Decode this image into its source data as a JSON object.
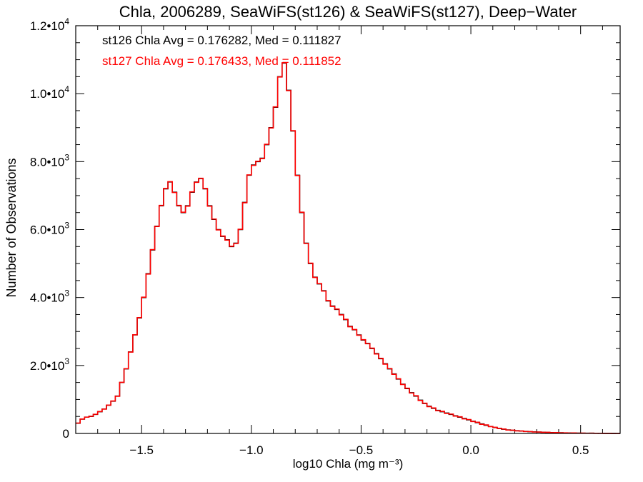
{
  "chart_data": {
    "type": "line",
    "style": "step-histogram",
    "title": "Chla, 2006289, SeaWiFS(st126) & SeaWiFS(st127), Deep−Water",
    "xlabel": "log10 Chla (mg m⁻³)",
    "ylabel": "Number of Observations",
    "xlim": [
      -1.8,
      0.68
    ],
    "ylim": [
      0,
      12000
    ],
    "x_ticks": [
      {
        "value": -1.5,
        "label": "−1.5"
      },
      {
        "value": -1.0,
        "label": "−1.0"
      },
      {
        "value": -0.5,
        "label": "−0.5"
      },
      {
        "value": 0.0,
        "label": "0.0"
      },
      {
        "value": 0.5,
        "label": "0.5"
      }
    ],
    "y_ticks": [
      {
        "value": 0,
        "mant": "0",
        "exp": ""
      },
      {
        "value": 2000,
        "mant": "2.0•10",
        "exp": "3"
      },
      {
        "value": 4000,
        "mant": "4.0•10",
        "exp": "3"
      },
      {
        "value": 6000,
        "mant": "6.0•10",
        "exp": "3"
      },
      {
        "value": 8000,
        "mant": "8.0•10",
        "exp": "3"
      },
      {
        "value": 10000,
        "mant": "1.0•10",
        "exp": "4"
      },
      {
        "value": 12000,
        "mant": "1.2•10",
        "exp": "4"
      }
    ],
    "grid": false,
    "legend_placement": "top-left",
    "series": [
      {
        "id": "st126",
        "annotation": "st126 Chla Avg = 0.176282, Med = 0.111827",
        "color": "#000000",
        "x": [
          -1.8,
          -1.78,
          -1.76,
          -1.74,
          -1.72,
          -1.7,
          -1.68,
          -1.66,
          -1.64,
          -1.62,
          -1.6,
          -1.58,
          -1.56,
          -1.54,
          -1.52,
          -1.5,
          -1.48,
          -1.46,
          -1.44,
          -1.42,
          -1.4,
          -1.38,
          -1.36,
          -1.34,
          -1.32,
          -1.3,
          -1.28,
          -1.26,
          -1.24,
          -1.22,
          -1.2,
          -1.18,
          -1.16,
          -1.14,
          -1.12,
          -1.1,
          -1.08,
          -1.06,
          -1.04,
          -1.02,
          -1.0,
          -0.98,
          -0.96,
          -0.94,
          -0.92,
          -0.9,
          -0.88,
          -0.86,
          -0.84,
          -0.82,
          -0.8,
          -0.78,
          -0.76,
          -0.74,
          -0.72,
          -0.7,
          -0.68,
          -0.66,
          -0.64,
          -0.62,
          -0.6,
          -0.58,
          -0.56,
          -0.54,
          -0.52,
          -0.5,
          -0.48,
          -0.46,
          -0.44,
          -0.42,
          -0.4,
          -0.38,
          -0.36,
          -0.34,
          -0.32,
          -0.3,
          -0.28,
          -0.26,
          -0.24,
          -0.22,
          -0.2,
          -0.18,
          -0.16,
          -0.14,
          -0.12,
          -0.1,
          -0.08,
          -0.06,
          -0.04,
          -0.02,
          0.0,
          0.02,
          0.04,
          0.06,
          0.08,
          0.1,
          0.12,
          0.14,
          0.16,
          0.18,
          0.2,
          0.22,
          0.24,
          0.26,
          0.28,
          0.3,
          0.32,
          0.34,
          0.36,
          0.38,
          0.4,
          0.42,
          0.44,
          0.46,
          0.48,
          0.5,
          0.52,
          0.54,
          0.56,
          0.58,
          0.6,
          0.62,
          0.64,
          0.66
        ],
        "values": [
          300,
          420,
          480,
          500,
          560,
          640,
          720,
          830,
          950,
          1100,
          1500,
          1900,
          2400,
          2900,
          3400,
          4000,
          4700,
          5400,
          6100,
          6700,
          7200,
          7400,
          7100,
          6700,
          6500,
          6700,
          7100,
          7400,
          7500,
          7200,
          6700,
          6300,
          6000,
          5800,
          5700,
          5500,
          5600,
          6000,
          6800,
          7600,
          7900,
          8000,
          8100,
          8500,
          9000,
          9600,
          10500,
          10900,
          10100,
          8900,
          7600,
          6500,
          5600,
          5000,
          4600,
          4400,
          4200,
          3900,
          3750,
          3650,
          3500,
          3350,
          3150,
          3050,
          2900,
          2750,
          2650,
          2500,
          2350,
          2200,
          2050,
          1900,
          1750,
          1600,
          1450,
          1320,
          1200,
          1100,
          980,
          880,
          800,
          740,
          680,
          640,
          600,
          560,
          520,
          480,
          440,
          400,
          360,
          320,
          280,
          240,
          205,
          175,
          150,
          125,
          105,
          90,
          80,
          70,
          60,
          52,
          45,
          40,
          35,
          30,
          25,
          22,
          19,
          16,
          14,
          12,
          10,
          8,
          7,
          6,
          5,
          4,
          3,
          2,
          1,
          0
        ]
      },
      {
        "id": "st127",
        "annotation": "st127 Chla Avg = 0.176433, Med = 0.111852",
        "color": "#ff0000",
        "x": [
          -1.8,
          -1.78,
          -1.76,
          -1.74,
          -1.72,
          -1.7,
          -1.68,
          -1.66,
          -1.64,
          -1.62,
          -1.6,
          -1.58,
          -1.56,
          -1.54,
          -1.52,
          -1.5,
          -1.48,
          -1.46,
          -1.44,
          -1.42,
          -1.4,
          -1.38,
          -1.36,
          -1.34,
          -1.32,
          -1.3,
          -1.28,
          -1.26,
          -1.24,
          -1.22,
          -1.2,
          -1.18,
          -1.16,
          -1.14,
          -1.12,
          -1.1,
          -1.08,
          -1.06,
          -1.04,
          -1.02,
          -1.0,
          -0.98,
          -0.96,
          -0.94,
          -0.92,
          -0.9,
          -0.88,
          -0.86,
          -0.84,
          -0.82,
          -0.8,
          -0.78,
          -0.76,
          -0.74,
          -0.72,
          -0.7,
          -0.68,
          -0.66,
          -0.64,
          -0.62,
          -0.6,
          -0.58,
          -0.56,
          -0.54,
          -0.52,
          -0.5,
          -0.48,
          -0.46,
          -0.44,
          -0.42,
          -0.4,
          -0.38,
          -0.36,
          -0.34,
          -0.32,
          -0.3,
          -0.28,
          -0.26,
          -0.24,
          -0.22,
          -0.2,
          -0.18,
          -0.16,
          -0.14,
          -0.12,
          -0.1,
          -0.08,
          -0.06,
          -0.04,
          -0.02,
          0.0,
          0.02,
          0.04,
          0.06,
          0.08,
          0.1,
          0.12,
          0.14,
          0.16,
          0.18,
          0.2,
          0.22,
          0.24,
          0.26,
          0.28,
          0.3,
          0.32,
          0.34,
          0.36,
          0.38,
          0.4,
          0.42,
          0.44,
          0.46,
          0.48,
          0.5,
          0.52,
          0.54,
          0.56,
          0.58,
          0.6,
          0.62,
          0.64,
          0.66
        ],
        "values": [
          305,
          425,
          478,
          505,
          565,
          645,
          715,
          835,
          955,
          1095,
          1505,
          1905,
          2395,
          2905,
          3410,
          4010,
          4690,
          5410,
          6090,
          6710,
          7210,
          7410,
          7090,
          6710,
          6510,
          6690,
          7110,
          7390,
          7510,
          7210,
          6690,
          6310,
          5990,
          5810,
          5690,
          5510,
          5590,
          6010,
          6790,
          7610,
          7890,
          8010,
          8090,
          8510,
          8990,
          9610,
          10490,
          10910,
          10090,
          8910,
          7590,
          6510,
          5590,
          5010,
          4590,
          4410,
          4190,
          3910,
          3740,
          3660,
          3490,
          3360,
          3140,
          3060,
          2890,
          2760,
          2640,
          2510,
          2340,
          2210,
          2040,
          1910,
          1740,
          1610,
          1440,
          1330,
          1190,
          1110,
          970,
          890,
          790,
          750,
          670,
          650,
          590,
          570,
          510,
          490,
          430,
          410,
          350,
          330,
          270,
          250,
          200,
          180,
          145,
          130,
          100,
          95,
          75,
          72,
          55,
          55,
          42,
          42,
          32,
          32,
          22,
          24,
          17,
          18,
          12,
          14,
          8,
          10,
          5,
          8,
          3,
          5,
          1,
          3,
          0,
          0
        ]
      }
    ]
  }
}
